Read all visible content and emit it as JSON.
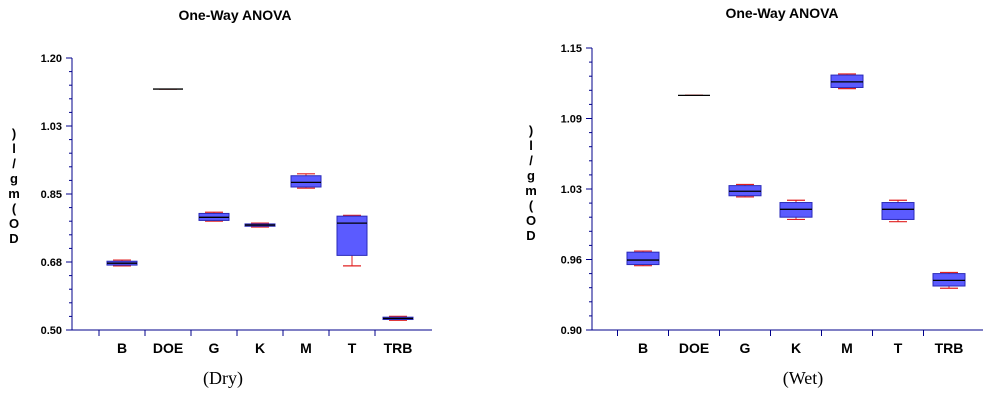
{
  "chart_data": [
    {
      "type": "box",
      "title": "One-Way ANOVA",
      "caption": "(Dry)",
      "ylabel": "OD(mg/l)",
      "ylabel_chars": [
        ")",
        "l",
        "/",
        "g",
        "m",
        "(",
        "O",
        "D"
      ],
      "ylim": [
        0.5,
        1.2
      ],
      "yticks": [
        "1.20",
        "1.03",
        "0.85",
        "0.68",
        "0.50"
      ],
      "categories": [
        "B",
        "DOE",
        "G",
        "K",
        "M",
        "T",
        "TRB"
      ],
      "boxes": [
        {
          "category": "B",
          "min": 0.665,
          "q1": 0.667,
          "median": 0.672,
          "q3": 0.677,
          "max": 0.68
        },
        {
          "category": "DOE",
          "min": 1.12,
          "q1": 1.12,
          "median": 1.12,
          "q3": 1.12,
          "max": 1.12
        },
        {
          "category": "G",
          "min": 0.78,
          "q1": 0.782,
          "median": 0.79,
          "q3": 0.8,
          "max": 0.803
        },
        {
          "category": "K",
          "min": 0.765,
          "q1": 0.767,
          "median": 0.77,
          "q3": 0.773,
          "max": 0.775
        },
        {
          "category": "M",
          "min": 0.865,
          "q1": 0.868,
          "median": 0.88,
          "q3": 0.897,
          "max": 0.902
        },
        {
          "category": "T",
          "min": 0.665,
          "q1": 0.692,
          "median": 0.775,
          "q3": 0.793,
          "max": 0.795
        },
        {
          "category": "TRB",
          "min": 0.525,
          "q1": 0.527,
          "median": 0.53,
          "q3": 0.533,
          "max": 0.535
        }
      ]
    },
    {
      "type": "box",
      "title": "One-Way ANOVA",
      "caption": "(Wet)",
      "ylabel": "OD(mg/l)",
      "ylabel_chars": [
        ")",
        "l",
        "/",
        "g",
        "m",
        "(",
        "O",
        "D"
      ],
      "ylim": [
        0.9,
        1.15
      ],
      "yticks": [
        "1.15",
        "1.09",
        "1.03",
        "0.96",
        "0.90"
      ],
      "categories": [
        "B",
        "DOE",
        "G",
        "K",
        "M",
        "T",
        "TRB"
      ],
      "boxes": [
        {
          "category": "B",
          "min": 0.957,
          "q1": 0.958,
          "median": 0.962,
          "q3": 0.969,
          "max": 0.97
        },
        {
          "category": "DOE",
          "min": 1.108,
          "q1": 1.108,
          "median": 1.108,
          "q3": 1.108,
          "max": 1.108
        },
        {
          "category": "G",
          "min": 1.018,
          "q1": 1.019,
          "median": 1.023,
          "q3": 1.028,
          "max": 1.029
        },
        {
          "category": "K",
          "min": 0.998,
          "q1": 1.0,
          "median": 1.007,
          "q3": 1.013,
          "max": 1.015
        },
        {
          "category": "M",
          "min": 1.114,
          "q1": 1.115,
          "median": 1.12,
          "q3": 1.126,
          "max": 1.127
        },
        {
          "category": "T",
          "min": 0.996,
          "q1": 0.998,
          "median": 1.007,
          "q3": 1.013,
          "max": 1.015
        },
        {
          "category": "TRB",
          "min": 0.937,
          "q1": 0.939,
          "median": 0.944,
          "q3": 0.95,
          "max": 0.951
        }
      ]
    }
  ],
  "colors": {
    "box_fill": "#5b5bff",
    "box_stroke": "#2a2ab8",
    "median": "#000000",
    "whisker": "#e02020",
    "axis": "#00008b"
  }
}
